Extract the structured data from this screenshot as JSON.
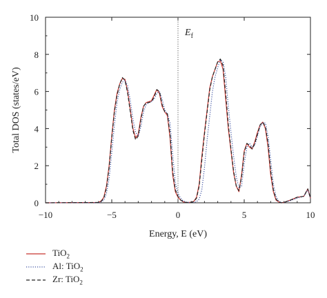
{
  "chart_data": {
    "type": "line",
    "title": "",
    "xlabel": "Energy, E (eV)",
    "ylabel": "Total DOS (states/eV)",
    "xlim": [
      -10,
      10
    ],
    "ylim": [
      0,
      10
    ],
    "xticks": [
      -10,
      -5,
      0,
      5,
      10
    ],
    "yticks": [
      0,
      2,
      4,
      6,
      8,
      10
    ],
    "grid": false,
    "legend_position": "bottom-left-outside",
    "annotation": {
      "text": "E",
      "subscript": "f",
      "x": 0
    },
    "series": [
      {
        "name": "TiO2",
        "name_base": "TiO",
        "name_sub": "2",
        "color": "#c8352f",
        "dash": "solid",
        "x": [
          -10,
          -6,
          -5.8,
          -5.6,
          -5.4,
          -5.2,
          -5,
          -4.8,
          -4.6,
          -4.4,
          -4.2,
          -4,
          -3.8,
          -3.6,
          -3.4,
          -3.2,
          -3,
          -2.8,
          -2.6,
          -2.4,
          -2.2,
          -2,
          -1.8,
          -1.6,
          -1.4,
          -1.2,
          -1,
          -0.8,
          -0.6,
          -0.4,
          -0.2,
          0,
          0.2,
          0.4,
          0.6,
          0.8,
          1,
          1.2,
          1.4,
          1.6,
          1.8,
          2,
          2.2,
          2.4,
          2.6,
          2.8,
          3,
          3.2,
          3.4,
          3.6,
          3.8,
          4,
          4.2,
          4.4,
          4.6,
          4.8,
          5,
          5.2,
          5.4,
          5.6,
          5.8,
          6,
          6.2,
          6.4,
          6.6,
          6.8,
          7,
          7.2,
          7.4,
          7.6,
          7.8,
          8,
          8.5,
          9,
          9.5,
          9.8,
          10
        ],
        "y": [
          0,
          0.02,
          0.1,
          0.3,
          0.9,
          2.0,
          3.6,
          5.0,
          5.9,
          6.4,
          6.7,
          6.65,
          6.0,
          5.0,
          4.0,
          3.5,
          3.7,
          4.6,
          5.2,
          5.4,
          5.45,
          5.5,
          5.8,
          6.1,
          5.9,
          5.2,
          4.9,
          4.7,
          3.5,
          1.5,
          0.6,
          0.3,
          0.15,
          0.05,
          0.02,
          0.02,
          0.03,
          0.08,
          0.3,
          1.0,
          2.5,
          3.8,
          5.0,
          6.2,
          6.8,
          7.2,
          7.6,
          7.65,
          7.2,
          5.6,
          4.0,
          2.8,
          1.6,
          0.9,
          0.6,
          1.5,
          2.8,
          3.2,
          3.0,
          2.9,
          3.3,
          3.8,
          4.2,
          4.35,
          4.0,
          3.0,
          1.5,
          0.6,
          0.15,
          0.05,
          0,
          0.02,
          0.15,
          0.3,
          0.35,
          0.75,
          0.25
        ]
      },
      {
        "name": "Al: TiO2",
        "name_base": "Al: TiO",
        "name_sub": "2",
        "color": "#3a4fa0",
        "dash": "dotted",
        "x": [
          -10,
          -6,
          -5.8,
          -5.6,
          -5.4,
          -5.2,
          -5,
          -4.8,
          -4.6,
          -4.4,
          -4.2,
          -4,
          -3.8,
          -3.6,
          -3.4,
          -3.2,
          -3,
          -2.8,
          -2.6,
          -2.4,
          -2.2,
          -2,
          -1.8,
          -1.6,
          -1.4,
          -1.2,
          -1,
          -0.8,
          -0.6,
          -0.4,
          -0.2,
          0,
          0.2,
          0.4,
          0.6,
          0.8,
          1,
          1.2,
          1.4,
          1.6,
          1.8,
          2,
          2.2,
          2.4,
          2.6,
          2.8,
          3,
          3.2,
          3.4,
          3.6,
          3.8,
          4,
          4.2,
          4.4,
          4.6,
          4.8,
          5,
          5.2,
          5.4,
          5.6,
          5.8,
          6,
          6.2,
          6.4,
          6.6,
          6.8,
          7,
          7.2,
          7.4,
          7.6,
          7.8,
          8,
          8.5,
          9,
          9.5,
          9.8,
          10
        ],
        "y": [
          0,
          0.01,
          0.05,
          0.15,
          0.5,
          1.3,
          2.7,
          4.2,
          5.4,
          6.1,
          6.5,
          6.6,
          6.3,
          5.5,
          4.5,
          3.8,
          3.6,
          4.1,
          4.9,
          5.3,
          5.4,
          5.45,
          5.6,
          5.9,
          6.0,
          5.6,
          5.0,
          4.8,
          4.3,
          2.6,
          1.1,
          0.5,
          0.25,
          0.1,
          0.04,
          0.02,
          0.02,
          0.03,
          0.06,
          0.2,
          0.7,
          1.9,
          3.4,
          4.7,
          6.0,
          6.8,
          7.3,
          7.7,
          7.6,
          6.8,
          5.2,
          3.8,
          2.5,
          1.4,
          0.8,
          0.9,
          2.1,
          3.0,
          3.2,
          3.0,
          3.1,
          3.6,
          4.1,
          4.3,
          4.3,
          3.6,
          2.3,
          1.0,
          0.35,
          0.1,
          0.02,
          0.02,
          0.12,
          0.25,
          0.35,
          0.7,
          0.25
        ]
      },
      {
        "name": "Zr: TiO2",
        "name_base": "Zr: TiO",
        "name_sub": "2",
        "color": "#222222",
        "dash": "dashed",
        "x": [
          -10,
          -6,
          -5.8,
          -5.6,
          -5.4,
          -5.2,
          -5,
          -4.8,
          -4.6,
          -4.4,
          -4.2,
          -4,
          -3.8,
          -3.6,
          -3.4,
          -3.2,
          -3,
          -2.8,
          -2.6,
          -2.4,
          -2.2,
          -2,
          -1.8,
          -1.6,
          -1.4,
          -1.2,
          -1,
          -0.8,
          -0.6,
          -0.4,
          -0.2,
          0,
          0.2,
          0.4,
          0.6,
          0.8,
          1,
          1.2,
          1.4,
          1.6,
          1.8,
          2,
          2.2,
          2.4,
          2.6,
          2.8,
          3,
          3.2,
          3.4,
          3.6,
          3.8,
          4,
          4.2,
          4.4,
          4.6,
          4.8,
          5,
          5.2,
          5.4,
          5.6,
          5.8,
          6,
          6.2,
          6.4,
          6.6,
          6.8,
          7,
          7.2,
          7.4,
          7.6,
          7.8,
          8,
          8.5,
          9,
          9.5,
          9.8,
          10
        ],
        "y": [
          0,
          0.02,
          0.08,
          0.25,
          0.8,
          1.9,
          3.5,
          4.9,
          5.8,
          6.4,
          6.75,
          6.6,
          5.9,
          4.9,
          3.9,
          3.4,
          3.6,
          4.5,
          5.2,
          5.4,
          5.4,
          5.45,
          5.7,
          6.1,
          6.0,
          5.3,
          4.9,
          4.8,
          3.7,
          1.7,
          0.7,
          0.35,
          0.15,
          0.06,
          0.02,
          0.02,
          0.03,
          0.07,
          0.25,
          0.9,
          2.3,
          3.7,
          4.9,
          6.1,
          6.8,
          7.2,
          7.6,
          7.75,
          7.4,
          5.9,
          4.2,
          2.9,
          1.7,
          0.9,
          0.65,
          1.4,
          2.7,
          3.2,
          3.1,
          2.9,
          3.2,
          3.7,
          4.2,
          4.35,
          4.1,
          3.2,
          1.7,
          0.7,
          0.2,
          0.05,
          0,
          0.02,
          0.15,
          0.3,
          0.35,
          0.75,
          0.25
        ]
      }
    ]
  }
}
